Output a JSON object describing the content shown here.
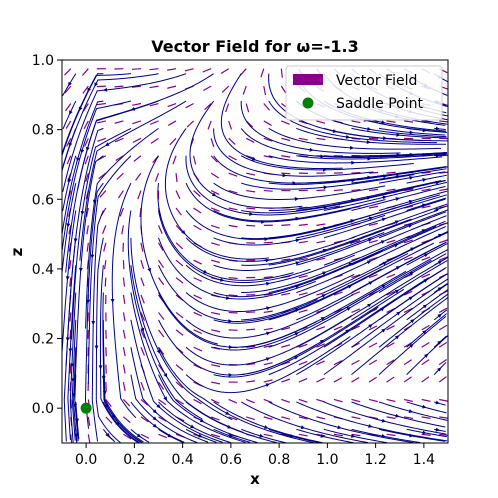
{
  "chart_data": {
    "type": "streamplot",
    "title": "Vector Field for ω=-1.3",
    "xlabel": "x",
    "ylabel": "z",
    "xlim": [
      -0.1,
      1.5
    ],
    "ylim": [
      -0.1,
      1.0
    ],
    "x_ticks": [
      "0.0",
      "0.2",
      "0.4",
      "0.6",
      "0.8",
      "1.0",
      "1.2",
      "1.4"
    ],
    "y_ticks": [
      "0.0",
      "0.2",
      "0.4",
      "0.6",
      "0.8",
      "1.0"
    ],
    "x_tick_values": [
      0.0,
      0.2,
      0.4,
      0.6,
      0.8,
      1.0,
      1.2,
      1.4
    ],
    "y_tick_values": [
      0.0,
      0.2,
      0.4,
      0.6,
      0.8,
      1.0
    ],
    "grid": false,
    "legend_position": "top-right",
    "omega": -1.3,
    "series": [
      {
        "name": "Vector Field",
        "kind": "quiver",
        "color": "#8b008b"
      },
      {
        "name": "Saddle Point",
        "kind": "point",
        "color": "#008000",
        "x": 0.0,
        "z": 0.0
      }
    ],
    "streamline_color": "#00008b"
  }
}
